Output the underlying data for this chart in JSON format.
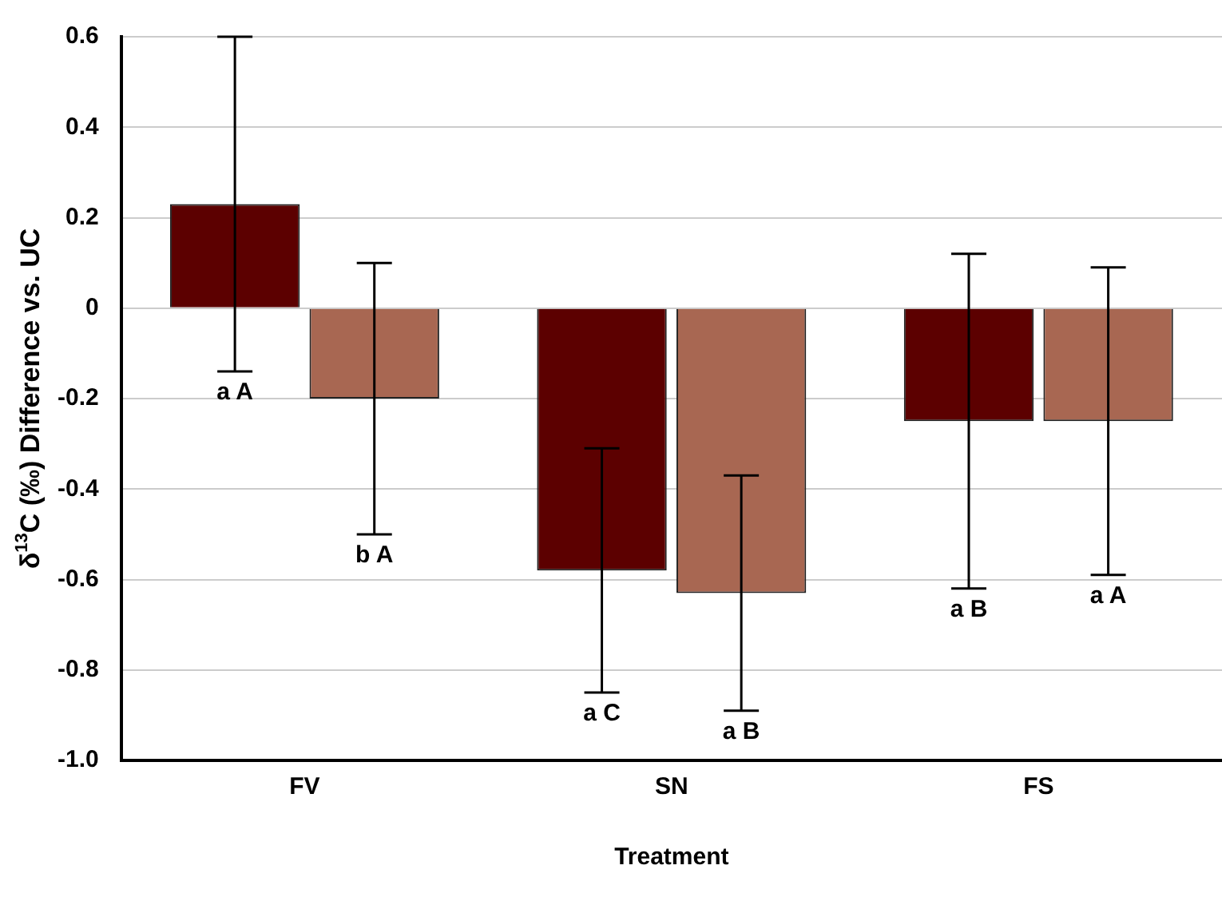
{
  "chart_data": {
    "type": "bar",
    "xlabel": "Treatment",
    "ylabel": "δ$^{13}$C (‰) Difference vs. UC",
    "categories": [
      "FV",
      "SN",
      "FS"
    ],
    "series": [
      {
        "color": "#5c0000",
        "values": [
          0.23,
          -0.58,
          -0.25
        ],
        "errors": [
          0.37,
          0.27,
          0.37
        ]
      },
      {
        "color": "#a86752",
        "values": [
          -0.2,
          -0.63,
          -0.25
        ],
        "errors": [
          0.3,
          0.26,
          0.34
        ]
      }
    ],
    "ylim": [
      -1.0,
      0.6
    ],
    "yticks": [
      {
        "value": -1.0,
        "label": "-1.0"
      },
      {
        "value": -0.8,
        "label": "-0.8"
      },
      {
        "value": -0.6,
        "label": "-0.6"
      },
      {
        "value": -0.4,
        "label": "-0.4"
      },
      {
        "value": -0.2,
        "label": "-0.2"
      },
      0,
      {
        "value": 0.2,
        "label": "0.2"
      },
      {
        "value": 0.4,
        "label": "0.4"
      },
      {
        "value": 0.6,
        "label": "0.6"
      }
    ],
    "grid": "y",
    "legend": false,
    "annotations": [
      "a A",
      "b A",
      "a C",
      "a B",
      "a B",
      "a A"
    ]
  }
}
